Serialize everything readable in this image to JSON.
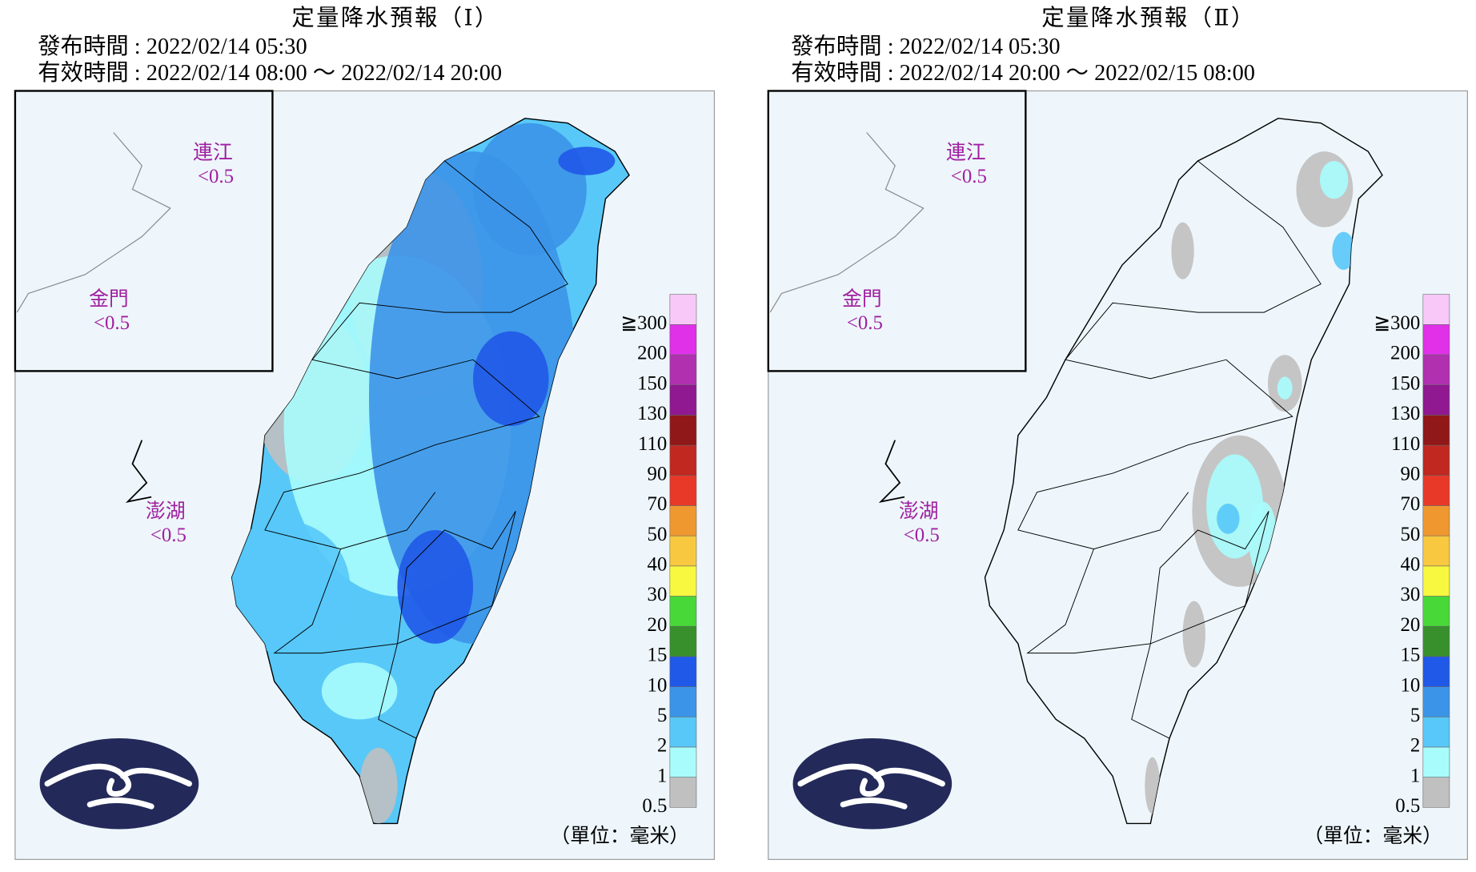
{
  "panels": [
    {
      "title": "定量降水預報（Ⅰ）",
      "issued": "發布時間 : 2022/02/14 05:30",
      "valid": "有效時間 : 2022/02/14 08:00 ～ 2022/02/14 20:00",
      "regions": [
        {
          "name": "連江",
          "value": "<0.5"
        },
        {
          "name": "金門",
          "value": "<0.5"
        },
        {
          "name": "澎湖",
          "value": "<0.5"
        }
      ]
    },
    {
      "title": "定量降水預報（Ⅱ）",
      "issued": "發布時間 : 2022/02/14 05:30",
      "valid": "有效時間 : 2022/02/14 20:00 ～ 2022/02/15 08:00",
      "regions": [
        {
          "name": "連江",
          "value": "<0.5"
        },
        {
          "name": "金門",
          "value": "<0.5"
        },
        {
          "name": "澎湖",
          "value": "<0.5"
        }
      ]
    }
  ],
  "legend": {
    "labels": [
      "0.5",
      "1",
      "2",
      "5",
      "10",
      "15",
      "20",
      "30",
      "40",
      "50",
      "70",
      "90",
      "110",
      "130",
      "150",
      "200",
      "≧300"
    ],
    "colors": [
      "#c0c0c0",
      "#a8fcfc",
      "#58c8f8",
      "#3c94e8",
      "#2058e8",
      "#38902c",
      "#48d838",
      "#f8f840",
      "#f8c840",
      "#f09830",
      "#e83828",
      "#c02820",
      "#901818",
      "#901890",
      "#b030b0",
      "#e030e8",
      "#f8c8f8"
    ]
  },
  "unit": "（單位：毫米）"
}
